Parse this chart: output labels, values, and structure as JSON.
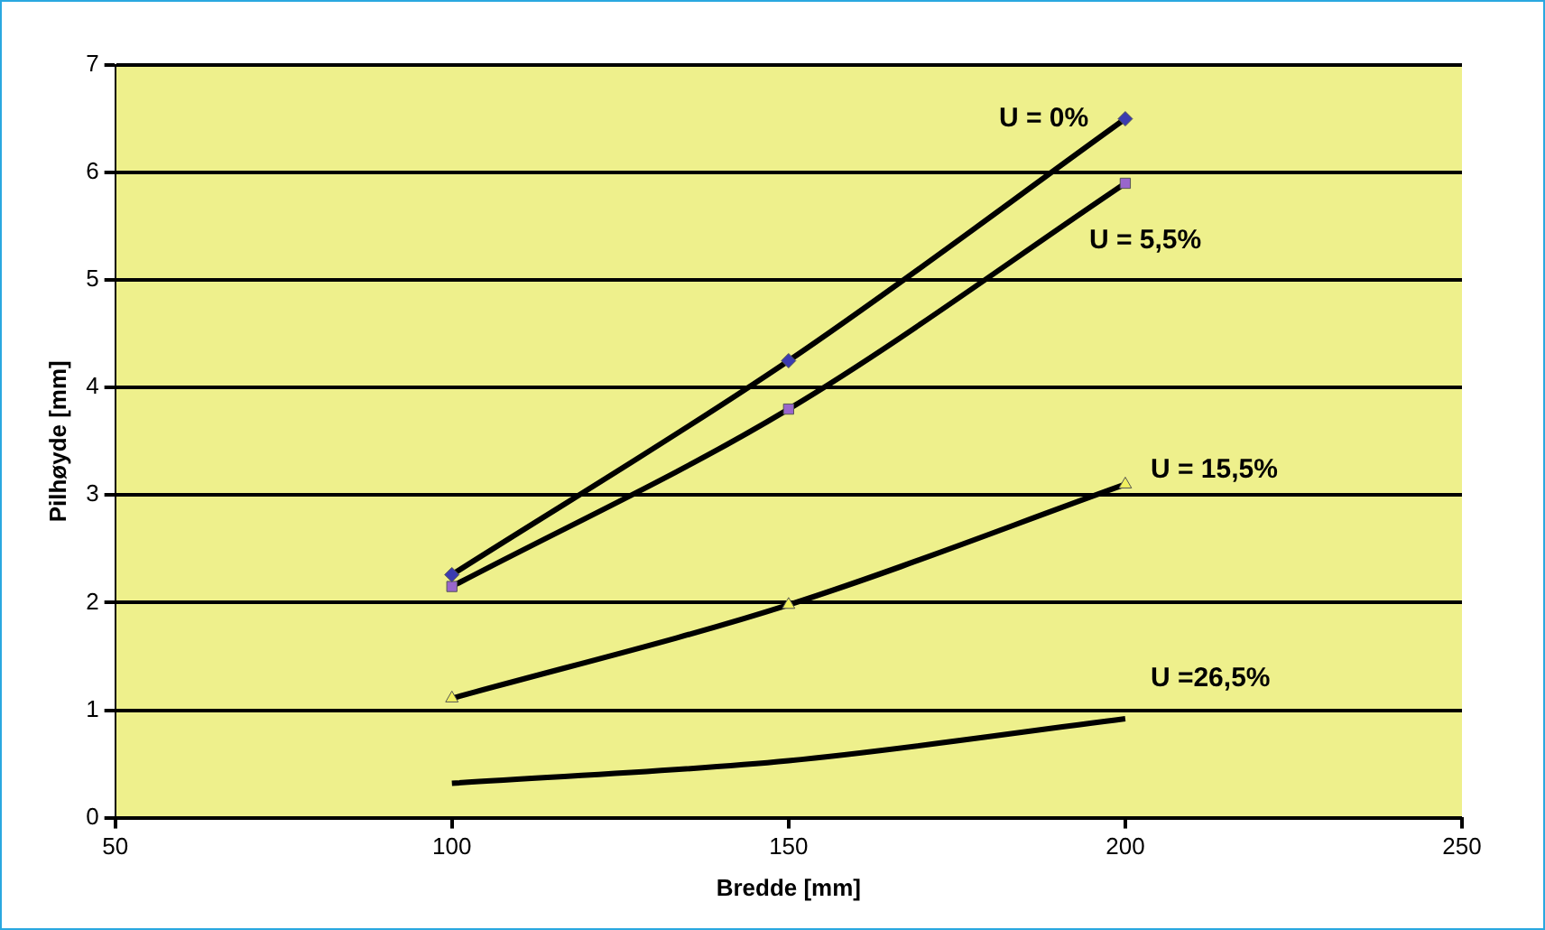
{
  "chart_data": {
    "type": "line",
    "xlabel": "Bredde [mm]",
    "ylabel": "Pilhøyde [mm]",
    "x": [
      100,
      150,
      200
    ],
    "series": [
      {
        "name": "U = 0%",
        "color": "#000000",
        "colors": [
          "#3b3bb0",
          "#3b3bb0",
          "#3b3bb0"
        ],
        "marker": "diamond",
        "values": [
          2.26,
          4.25,
          6.5
        ]
      },
      {
        "name": "U = 5,5%",
        "color": "#000000",
        "colors": [
          "#9966cc",
          "#9966cc",
          "#9966cc"
        ],
        "marker": "square",
        "values": [
          2.15,
          3.8,
          5.9
        ]
      },
      {
        "name": "U = 15,5%",
        "color": "#000000",
        "colors": [
          "#f0f060",
          "#f0f060",
          "#f0f060"
        ],
        "marker": "triangle",
        "values": [
          1.11,
          1.98,
          3.1
        ]
      },
      {
        "name": "U =26,5%",
        "color": "#000000",
        "marker": "none",
        "values": [
          0.32,
          0.53,
          0.92
        ]
      }
    ],
    "xlim": [
      50,
      250
    ],
    "xticks": [
      50,
      100,
      150,
      200,
      250
    ],
    "ylim": [
      0,
      7
    ],
    "yticks": [
      0,
      1,
      2,
      3,
      4,
      5,
      6,
      7
    ],
    "grid": "y",
    "legend": false
  }
}
